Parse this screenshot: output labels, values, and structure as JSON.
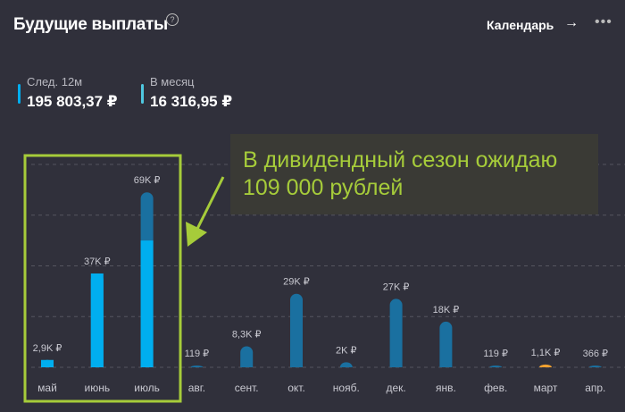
{
  "header": {
    "title": "Будущие выплаты",
    "help_icon": "question-circle-icon",
    "calendar_label": "Календарь",
    "arrow_icon": "arrow-right-icon",
    "more_icon": "more-horizontal-icon"
  },
  "stats": [
    {
      "label": "След. 12м",
      "value": "195 803,37 ₽",
      "color": "#00aeef"
    },
    {
      "label": "В месяц",
      "value": "16 316,95 ₽",
      "color": "#4fc8e0"
    }
  ],
  "annotation": {
    "text_line1": "В дивидендный сезон ожидаю",
    "text_line2": "109 000 рублей",
    "color": "#a6cc3a"
  },
  "chart_data": {
    "type": "bar",
    "categories": [
      "май",
      "июнь",
      "июль",
      "авг.",
      "сент.",
      "окт.",
      "нояб.",
      "дек.",
      "янв.",
      "фев.",
      "март",
      "апр."
    ],
    "values": [
      2900,
      37000,
      69000,
      119,
      8300,
      29000,
      2000,
      27000,
      18000,
      119,
      1100,
      366
    ],
    "value_labels": [
      "2,9K ₽",
      "37K ₽",
      "69K ₽",
      "119 ₽",
      "8,3K ₽",
      "29K ₽",
      "2K ₽",
      "27K ₽",
      "18K ₽",
      "119 ₽",
      "1,1K ₽",
      "366 ₽"
    ],
    "confirmed_portion": [
      2900,
      37000,
      50000,
      0,
      0,
      0,
      0,
      0,
      0,
      0,
      0,
      0
    ],
    "ylim": [
      0,
      80000
    ],
    "gridlines": [
      0,
      20000,
      40000,
      60000,
      80000
    ],
    "grid": true,
    "highlighted": [
      "май",
      "июнь",
      "июль"
    ],
    "colors": {
      "confirmed": "#00aeef",
      "expected": "#1a70a0",
      "special": "#f0a030",
      "highlight_box": "#a6cc3a"
    },
    "special_categories": [
      "март"
    ]
  }
}
